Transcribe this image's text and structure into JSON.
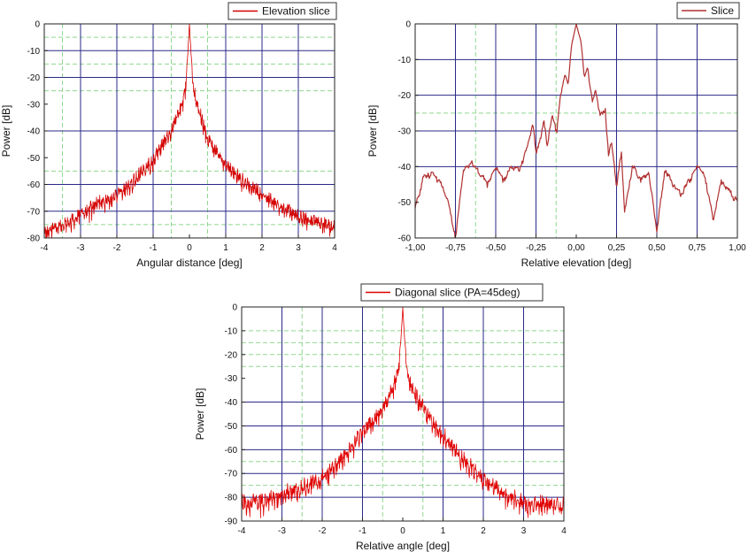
{
  "chart_data": [
    {
      "type": "line",
      "title": "",
      "xlabel": "Angular distance  [deg]",
      "ylabel": "Power [dB]",
      "xlim": [
        -4,
        4
      ],
      "ylim": [
        -80,
        0
      ],
      "xticks": [
        -4,
        -3,
        -2,
        -1,
        0,
        1,
        2,
        3,
        4
      ],
      "xtick_labels": [
        "-4",
        "-3",
        "-2",
        "-1",
        "0",
        "1",
        "2",
        "3",
        "4"
      ],
      "yticks": [
        0,
        -10,
        -20,
        -30,
        -40,
        -50,
        -60,
        -70,
        -80
      ],
      "ytick_labels": [
        "0",
        "-10",
        "-20",
        "-30",
        "-40",
        "-50",
        "-60",
        "-70",
        "-80"
      ],
      "major_grid_x": [
        -3,
        -2,
        -1,
        1,
        2,
        3
      ],
      "major_grid_y": [
        -10,
        -20,
        -40,
        -60,
        -70
      ],
      "minor_grid_x": [
        -3.5,
        -0.5,
        0.5
      ],
      "minor_grid_y": [
        -5,
        -15,
        -25,
        -55,
        -75
      ],
      "legend": {
        "labels": [
          "Elevation slice"
        ],
        "placement": "top-right"
      },
      "series": [
        {
          "name": "Elevation slice",
          "color": "#d40000",
          "x": [
            -4.0,
            -3.5,
            -3.0,
            -2.5,
            -2.0,
            -1.5,
            -1.0,
            -0.75,
            -0.5,
            -0.3,
            -0.2,
            -0.1,
            -0.05,
            0.0,
            0.05,
            0.1,
            0.2,
            0.3,
            0.5,
            0.75,
            1.0,
            1.5,
            2.0,
            2.5,
            3.0,
            3.5,
            4.0
          ],
          "values": [
            -75,
            -72,
            -68,
            -64,
            -61,
            -55,
            -48,
            -42,
            -37,
            -30,
            -27,
            -20,
            -12,
            0,
            -12,
            -20,
            -27,
            -31,
            -40,
            -45,
            -50,
            -56,
            -61,
            -65,
            -69,
            -71,
            -73
          ]
        }
      ]
    },
    {
      "type": "line",
      "title": "",
      "xlabel": "Relative elevation [deg]",
      "ylabel": "Power [dB]",
      "xlim": [
        -1.0,
        1.0
      ],
      "ylim": [
        -60,
        0
      ],
      "xticks": [
        -1.0,
        -0.75,
        -0.5,
        -0.25,
        0.0,
        0.25,
        0.5,
        0.75,
        1.0
      ],
      "xtick_labels": [
        "-1,00",
        "-0,75",
        "-0,50",
        "-0,25",
        "0,00",
        "0,25",
        "0,50",
        "0,75",
        "1,00"
      ],
      "yticks": [
        0,
        -10,
        -20,
        -30,
        -40,
        -50,
        -60
      ],
      "ytick_labels": [
        "0",
        "-10",
        "-20",
        "-30",
        "-40",
        "-50",
        "-60"
      ],
      "major_grid_x": [
        -0.75,
        -0.5,
        -0.25,
        0.25,
        0.5,
        0.75
      ],
      "major_grid_y": [
        -10,
        -20,
        -30,
        -40
      ],
      "minor_grid_x": [
        -0.625,
        -0.125
      ],
      "minor_grid_y": [
        -25
      ],
      "legend": {
        "labels": [
          "Slice"
        ],
        "placement": "top-right"
      },
      "series": [
        {
          "name": "Slice",
          "color": "#b03030",
          "x": [
            -1.0,
            -0.95,
            -0.9,
            -0.85,
            -0.8,
            -0.75,
            -0.7,
            -0.65,
            -0.6,
            -0.55,
            -0.5,
            -0.45,
            -0.4,
            -0.35,
            -0.3,
            -0.27,
            -0.25,
            -0.22,
            -0.2,
            -0.18,
            -0.15,
            -0.12,
            -0.1,
            -0.07,
            -0.05,
            -0.03,
            0.0,
            0.03,
            0.05,
            0.07,
            0.1,
            0.12,
            0.15,
            0.18,
            0.2,
            0.22,
            0.25,
            0.28,
            0.3,
            0.35,
            0.4,
            0.45,
            0.5,
            0.55,
            0.6,
            0.65,
            0.7,
            0.75,
            0.8,
            0.85,
            0.9,
            0.95,
            1.0
          ],
          "values": [
            -51,
            -42,
            -41,
            -43,
            -48,
            -59,
            -40,
            -38,
            -41,
            -44,
            -39,
            -43,
            -39,
            -40,
            -33,
            -27,
            -35,
            -31,
            -26,
            -33,
            -25,
            -29,
            -20,
            -14,
            -17,
            -6,
            0,
            -5,
            -15,
            -12,
            -21,
            -18,
            -25,
            -23,
            -36,
            -32,
            -45,
            -35,
            -52,
            -39,
            -43,
            -41,
            -57,
            -40,
            -44,
            -47,
            -43,
            -39,
            -42,
            -54,
            -43,
            -46,
            -49
          ]
        }
      ]
    },
    {
      "type": "line",
      "title": "",
      "xlabel": "Relative angle [deg]",
      "ylabel": "Power [dB]",
      "xlim": [
        -4,
        4
      ],
      "ylim": [
        -90,
        0
      ],
      "xticks": [
        -4,
        -3,
        -2,
        -1,
        0,
        1,
        2,
        3,
        4
      ],
      "xtick_labels": [
        "-4",
        "-3",
        "-2",
        "-1",
        "0",
        "1",
        "2",
        "3",
        "4"
      ],
      "yticks": [
        0,
        -10,
        -20,
        -30,
        -40,
        -50,
        -60,
        -70,
        -80,
        -90
      ],
      "ytick_labels": [
        "0",
        "-10",
        "-20",
        "-30",
        "-40",
        "-50",
        "-60",
        "-70",
        "-80",
        "-90"
      ],
      "major_grid_x": [
        -3,
        -2,
        -1,
        1,
        2,
        3
      ],
      "major_grid_y": [
        -40,
        -50,
        -60,
        -70,
        -80
      ],
      "minor_grid_x": [
        -2.5,
        -0.5,
        0.5
      ],
      "minor_grid_y": [
        -10,
        -15,
        -20,
        -25,
        -65,
        -75
      ],
      "legend": {
        "labels": [
          "Diagonal slice  (PA=45deg)"
        ],
        "placement": "top-center"
      },
      "series": [
        {
          "name": "Diagonal slice  (PA=45deg)",
          "color": "#e00000",
          "x": [
            -4.0,
            -3.5,
            -3.0,
            -2.5,
            -2.0,
            -1.5,
            -1.0,
            -0.75,
            -0.5,
            -0.3,
            -0.2,
            -0.1,
            -0.05,
            0.0,
            0.05,
            0.1,
            0.2,
            0.3,
            0.5,
            0.75,
            1.0,
            1.5,
            2.0,
            2.5,
            3.0,
            3.5,
            4.0
          ],
          "values": [
            -78,
            -78,
            -75,
            -72,
            -68,
            -60,
            -48,
            -44,
            -38,
            -32,
            -28,
            -22,
            -14,
            0,
            -14,
            -22,
            -28,
            -33,
            -38,
            -45,
            -50,
            -60,
            -68,
            -75,
            -78,
            -79,
            -79
          ]
        }
      ]
    }
  ]
}
